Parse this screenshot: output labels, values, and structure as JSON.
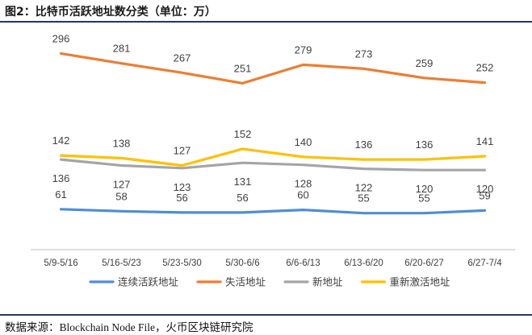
{
  "figure": {
    "title": "图2：比特币活跃地址数分类（单位：万）",
    "source_prefix": "数据来源：",
    "source_en": "Blockchain Node File",
    "source_suffix": "，火币区块链研究院"
  },
  "chart_data": {
    "type": "line",
    "title": "",
    "xlabel": "",
    "ylabel": "",
    "ylim": [
      0,
      320
    ],
    "grid": false,
    "legend_position": "bottom",
    "categories": [
      "5/9-5/16",
      "5/16-5/23",
      "5/23-5/30",
      "5/30-6/6",
      "6/6-6/13",
      "6/13-6/20",
      "6/20-6/27",
      "6/27-7/4"
    ],
    "series": [
      {
        "name": "连续活跃地址",
        "color": "#4e8ed3",
        "values": [
          61,
          58,
          56,
          56,
          60,
          55,
          55,
          59
        ]
      },
      {
        "name": "失活地址",
        "color": "#ed7d31",
        "values": [
          296,
          281,
          267,
          251,
          279,
          273,
          259,
          252
        ]
      },
      {
        "name": "新地址",
        "color": "#a5a5a5",
        "values": [
          136,
          127,
          123,
          131,
          128,
          122,
          120,
          120
        ]
      },
      {
        "name": "重新激活地址",
        "color": "#ffc000",
        "values": [
          142,
          138,
          127,
          152,
          140,
          136,
          136,
          141
        ]
      }
    ]
  }
}
